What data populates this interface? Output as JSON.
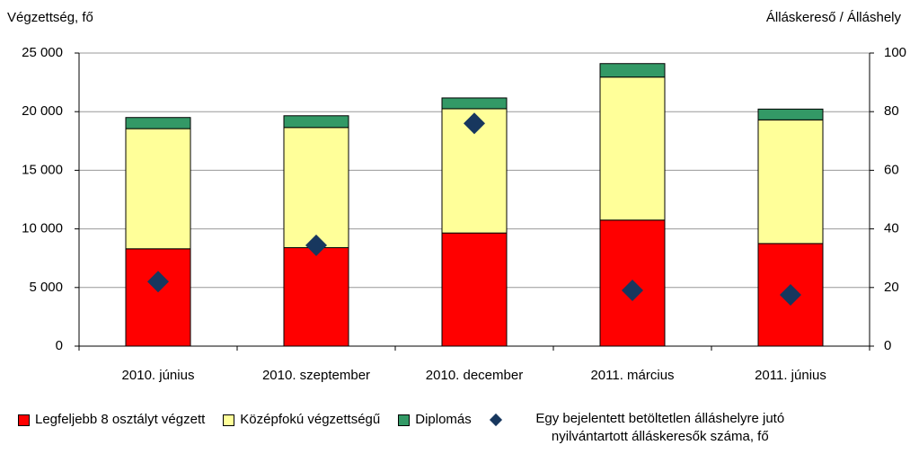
{
  "chart_data": {
    "type": "bar",
    "y_label": "Végzettség, fő",
    "y2_label": "Álláskereső / Álláshely",
    "categories": [
      "2010. június",
      "2010. szeptember",
      "2010. december",
      "2011. március",
      "2011. június"
    ],
    "series": [
      {
        "name": "Legfeljebb 8 osztályt végzett",
        "color": "#ff0000",
        "values": [
          8300,
          8400,
          9650,
          10750,
          8750
        ]
      },
      {
        "name": "Középfokú végzettségű",
        "color": "#ffff99",
        "values": [
          10250,
          10250,
          10600,
          12200,
          10550
        ]
      },
      {
        "name": "Diplomás",
        "color": "#339966",
        "values": [
          950,
          1000,
          920,
          1150,
          920
        ]
      },
      {
        "name": "Egy bejelentett betöltetlen álláshelyre jutó nyilvántartott álláskeresők száma, fő",
        "color": "#17375e",
        "type": "scatter",
        "axis": "y2",
        "values": [
          22,
          34.4,
          76,
          19,
          17.5
        ]
      }
    ],
    "ylim": [
      0,
      25000
    ],
    "yticks": [
      0,
      {
        "value": 5000,
        "label": "5 000"
      },
      {
        "value": 10000,
        "label": "10 000"
      },
      {
        "value": 15000,
        "label": "15 000"
      },
      {
        "value": 20000,
        "label": "20 000"
      },
      {
        "value": 25000,
        "label": "25 000"
      }
    ],
    "y2lim": [
      0,
      100
    ],
    "y2ticks": [
      0,
      20,
      40,
      60,
      80,
      100
    ],
    "grid": true,
    "legend": "bottom"
  }
}
